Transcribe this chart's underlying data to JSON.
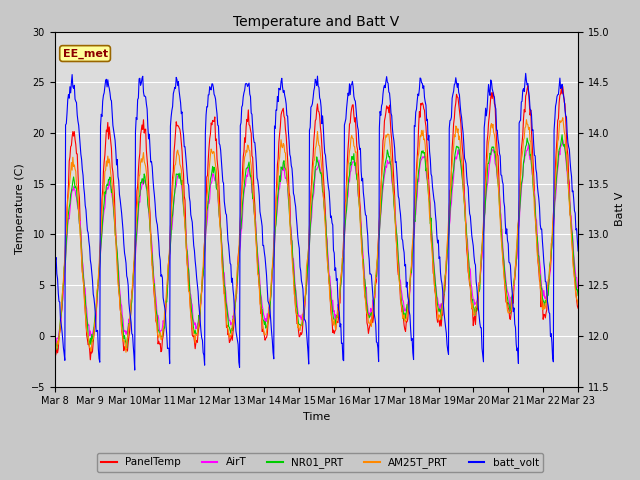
{
  "title": "Temperature and Batt V",
  "xlabel": "Time",
  "ylabel_left": "Temperature (C)",
  "ylabel_right": "Batt V",
  "ylim_left": [
    -5,
    30
  ],
  "ylim_right": [
    11.5,
    15.0
  ],
  "xlim_start": 0,
  "xlim_end": 15,
  "xtick_labels": [
    "Mar 8",
    "Mar 9",
    "Mar 10",
    "Mar 11",
    "Mar 12",
    "Mar 13",
    "Mar 14",
    "Mar 15",
    "Mar 16",
    "Mar 17",
    "Mar 18",
    "Mar 19",
    "Mar 20",
    "Mar 21",
    "Mar 22",
    "Mar 23"
  ],
  "station_label": "EE_met",
  "station_label_color": "#8B0000",
  "background_color": "#c8c8c8",
  "plot_bg_color": "#dcdcdc",
  "legend_entries": [
    "PanelTemp",
    "AirT",
    "NR01_PRT",
    "AM25T_PRT",
    "batt_volt"
  ],
  "legend_colors": [
    "#ff0000",
    "#ff00ff",
    "#00cc00",
    "#ff8800",
    "#0000ff"
  ],
  "line_width": 0.8,
  "title_fontsize": 10,
  "axis_fontsize": 8,
  "tick_fontsize": 7
}
